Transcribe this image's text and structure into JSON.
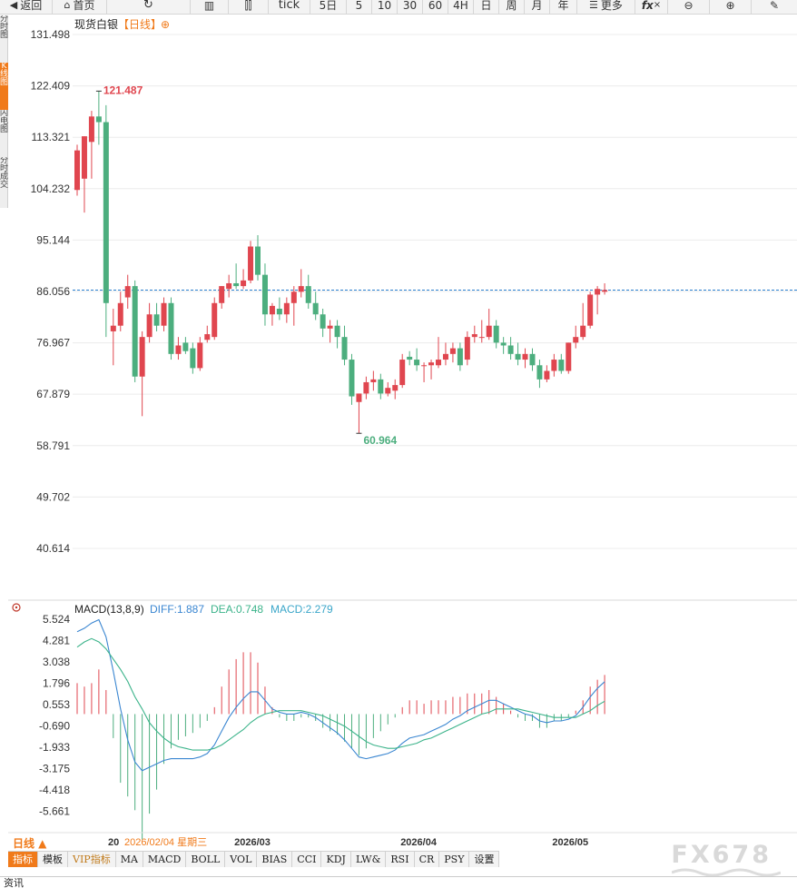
{
  "toolbar": {
    "back": "返回",
    "home": "首页",
    "tick": "tick",
    "periods": [
      "5日",
      "5",
      "10",
      "30",
      "60",
      "4H",
      "日",
      "周",
      "月",
      "年"
    ],
    "more": "更多",
    "fx": "fx"
  },
  "side_tabs": [
    "分时图",
    "K线图",
    "闪电图",
    "分时成交"
  ],
  "chart_header": {
    "title": "现货白银",
    "period_tag": "【日线】",
    "plus": "⊕"
  },
  "price_axis_labels": [
    "131.498",
    "122.409",
    "113.321",
    "104.232",
    "95.144",
    "86.056",
    "76.967",
    "67.879",
    "58.791",
    "49.702",
    "40.614"
  ],
  "price_axis_values": [
    131.498,
    122.409,
    113.321,
    104.232,
    95.144,
    86.056,
    76.967,
    67.879,
    58.791,
    49.702,
    40.614
  ],
  "max_price": {
    "label": "121.487",
    "value": 121.487,
    "index": 3
  },
  "min_price": {
    "label": "60.964",
    "value": 60.964,
    "index": 39
  },
  "current_price": 86.3,
  "macd_header": {
    "name": "MACD(13,8,9)",
    "diff": "DIFF:1.887",
    "dea": "DEA:0.748",
    "macd": "MACD:2.279"
  },
  "macd_axis_labels": [
    "5.524",
    "4.281",
    "3.038",
    "1.796",
    "0.553",
    "-0.690",
    "-1.933",
    "-3.175",
    "-4.418",
    "-5.661"
  ],
  "macd_axis_values": [
    5.524,
    4.281,
    3.038,
    1.796,
    0.553,
    -0.69,
    -1.933,
    -3.175,
    -4.418,
    -5.661
  ],
  "date_labels": [
    {
      "text": "20",
      "index": 4
    },
    {
      "text": "2026/02/04 星期三",
      "index": 6
    },
    {
      "text": "2026/03",
      "index": 22
    },
    {
      "text": "2026/04",
      "index": 45
    },
    {
      "text": "2026/05",
      "index": 66
    }
  ],
  "period_button": "日线 ▲",
  "bottom_tabs": [
    "指标",
    "模板",
    "VIP指标",
    "MA",
    "MACD",
    "BOLL",
    "VOL",
    "BIAS",
    "CCI",
    "KDJ",
    "LW&",
    "RSI",
    "CR",
    "PSY",
    "设置"
  ],
  "info_bar": "资讯",
  "watermark": "FX678",
  "colors": {
    "up": "#e0464f",
    "down": "#4cae7e",
    "diff": "#3a86d1",
    "dea": "#3bb38a",
    "accent": "#f07a1a",
    "grid": "#ececec",
    "price_line": "#2a7fcf"
  },
  "chart_data": {
    "type": "candlestick",
    "title": "现货白银【日线】",
    "ylim": [
      40.614,
      131.498
    ],
    "candles": [
      {
        "o": 104.0,
        "h": 112.0,
        "l": 103.0,
        "c": 111.0
      },
      {
        "o": 106.0,
        "h": 113.5,
        "l": 100.0,
        "c": 113.5
      },
      {
        "o": 112.5,
        "h": 118.0,
        "l": 106.0,
        "c": 117.0
      },
      {
        "o": 117.0,
        "h": 121.487,
        "l": 112.0,
        "c": 116.0
      },
      {
        "o": 116.0,
        "h": 119.0,
        "l": 78.0,
        "c": 84.0
      },
      {
        "o": 79.0,
        "h": 83.0,
        "l": 73.0,
        "c": 80.0
      },
      {
        "o": 80.0,
        "h": 86.0,
        "l": 79.0,
        "c": 84.0
      },
      {
        "o": 85.0,
        "h": 89.0,
        "l": 83.0,
        "c": 87.0
      },
      {
        "o": 87.0,
        "h": 88.0,
        "l": 70.0,
        "c": 71.0
      },
      {
        "o": 71.0,
        "h": 79.0,
        "l": 64.0,
        "c": 78.0
      },
      {
        "o": 78.0,
        "h": 84.0,
        "l": 77.0,
        "c": 82.0
      },
      {
        "o": 82.0,
        "h": 84.0,
        "l": 79.0,
        "c": 80.0
      },
      {
        "o": 80.0,
        "h": 85.0,
        "l": 79.0,
        "c": 84.0
      },
      {
        "o": 84.0,
        "h": 85.0,
        "l": 74.0,
        "c": 75.0
      },
      {
        "o": 75.0,
        "h": 78.0,
        "l": 74.0,
        "c": 76.5
      },
      {
        "o": 77.0,
        "h": 78.0,
        "l": 75.0,
        "c": 75.5
      },
      {
        "o": 76.0,
        "h": 77.0,
        "l": 71.5,
        "c": 72.5
      },
      {
        "o": 72.5,
        "h": 78.0,
        "l": 72.0,
        "c": 77.0
      },
      {
        "o": 77.5,
        "h": 80.0,
        "l": 77.0,
        "c": 78.5
      },
      {
        "o": 78.0,
        "h": 85.0,
        "l": 77.5,
        "c": 84.0
      },
      {
        "o": 84.0,
        "h": 87.0,
        "l": 83.0,
        "c": 87.0
      },
      {
        "o": 86.5,
        "h": 89.0,
        "l": 85.0,
        "c": 87.5
      },
      {
        "o": 87.5,
        "h": 91.0,
        "l": 86.5,
        "c": 87.0
      },
      {
        "o": 87.0,
        "h": 90.0,
        "l": 86.5,
        "c": 88.0
      },
      {
        "o": 88.0,
        "h": 95.0,
        "l": 87.5,
        "c": 94.0
      },
      {
        "o": 94.0,
        "h": 96.0,
        "l": 88.0,
        "c": 89.0
      },
      {
        "o": 89.0,
        "h": 91.0,
        "l": 80.0,
        "c": 82.0
      },
      {
        "o": 82.0,
        "h": 84.0,
        "l": 80.0,
        "c": 83.5
      },
      {
        "o": 83.0,
        "h": 85.0,
        "l": 81.0,
        "c": 82.0
      },
      {
        "o": 82.0,
        "h": 85.0,
        "l": 80.5,
        "c": 84.0
      },
      {
        "o": 84.0,
        "h": 87.0,
        "l": 80.0,
        "c": 86.0
      },
      {
        "o": 86.0,
        "h": 90.0,
        "l": 85.0,
        "c": 87.0
      },
      {
        "o": 87.0,
        "h": 89.0,
        "l": 83.0,
        "c": 84.0
      },
      {
        "o": 84.0,
        "h": 86.0,
        "l": 81.0,
        "c": 82.0
      },
      {
        "o": 82.0,
        "h": 83.0,
        "l": 78.0,
        "c": 79.5
      },
      {
        "o": 79.5,
        "h": 81.0,
        "l": 77.0,
        "c": 80.0
      },
      {
        "o": 80.0,
        "h": 81.0,
        "l": 76.0,
        "c": 78.0
      },
      {
        "o": 78.0,
        "h": 80.0,
        "l": 73.0,
        "c": 74.0
      },
      {
        "o": 74.0,
        "h": 75.0,
        "l": 66.0,
        "c": 67.5
      },
      {
        "o": 66.5,
        "h": 68.0,
        "l": 60.964,
        "c": 68.0
      },
      {
        "o": 68.0,
        "h": 71.0,
        "l": 67.0,
        "c": 70.0
      },
      {
        "o": 70.0,
        "h": 72.0,
        "l": 68.5,
        "c": 70.5
      },
      {
        "o": 70.5,
        "h": 71.5,
        "l": 67.0,
        "c": 68.0
      },
      {
        "o": 68.0,
        "h": 70.0,
        "l": 67.5,
        "c": 69.0
      },
      {
        "o": 68.5,
        "h": 70.5,
        "l": 67.0,
        "c": 69.5
      },
      {
        "o": 69.5,
        "h": 75.0,
        "l": 69.0,
        "c": 74.0
      },
      {
        "o": 74.5,
        "h": 75.5,
        "l": 73.0,
        "c": 74.0
      },
      {
        "o": 74.0,
        "h": 76.0,
        "l": 72.0,
        "c": 73.0
      },
      {
        "o": 73.0,
        "h": 73.5,
        "l": 70.0,
        "c": 73.0
      },
      {
        "o": 73.0,
        "h": 74.0,
        "l": 70.5,
        "c": 73.5
      },
      {
        "o": 73.0,
        "h": 78.0,
        "l": 72.5,
        "c": 74.0
      },
      {
        "o": 74.0,
        "h": 77.0,
        "l": 73.0,
        "c": 75.0
      },
      {
        "o": 75.0,
        "h": 77.0,
        "l": 73.5,
        "c": 76.0
      },
      {
        "o": 76.0,
        "h": 77.0,
        "l": 72.0,
        "c": 73.0
      },
      {
        "o": 74.0,
        "h": 79.0,
        "l": 73.0,
        "c": 78.0
      },
      {
        "o": 78.0,
        "h": 80.0,
        "l": 77.0,
        "c": 78.5
      },
      {
        "o": 78.0,
        "h": 81.0,
        "l": 77.0,
        "c": 78.0
      },
      {
        "o": 78.0,
        "h": 83.0,
        "l": 77.5,
        "c": 80.0
      },
      {
        "o": 80.0,
        "h": 81.0,
        "l": 76.0,
        "c": 77.0
      },
      {
        "o": 77.0,
        "h": 78.0,
        "l": 75.0,
        "c": 76.5
      },
      {
        "o": 76.5,
        "h": 78.0,
        "l": 74.0,
        "c": 75.0
      },
      {
        "o": 75.0,
        "h": 77.0,
        "l": 73.0,
        "c": 74.0
      },
      {
        "o": 74.0,
        "h": 76.0,
        "l": 72.5,
        "c": 75.0
      },
      {
        "o": 75.0,
        "h": 76.0,
        "l": 72.0,
        "c": 73.0
      },
      {
        "o": 73.0,
        "h": 74.0,
        "l": 69.0,
        "c": 70.5
      },
      {
        "o": 70.5,
        "h": 73.0,
        "l": 70.0,
        "c": 72.0
      },
      {
        "o": 72.0,
        "h": 75.0,
        "l": 71.0,
        "c": 74.0
      },
      {
        "o": 74.0,
        "h": 75.0,
        "l": 71.5,
        "c": 72.0
      },
      {
        "o": 72.0,
        "h": 77.0,
        "l": 71.5,
        "c": 77.0
      },
      {
        "o": 77.0,
        "h": 80.0,
        "l": 76.0,
        "c": 78.0
      },
      {
        "o": 78.0,
        "h": 84.0,
        "l": 77.5,
        "c": 80.0
      },
      {
        "o": 80.0,
        "h": 86.0,
        "l": 79.5,
        "c": 85.5
      },
      {
        "o": 85.5,
        "h": 87.0,
        "l": 82.0,
        "c": 86.5
      },
      {
        "o": 86.0,
        "h": 87.5,
        "l": 85.5,
        "c": 86.3
      }
    ],
    "macd": {
      "diff": [
        4.8,
        5.0,
        5.3,
        5.5,
        4.5,
        2.5,
        0.3,
        -1.5,
        -2.8,
        -3.3,
        -3.1,
        -2.9,
        -2.7,
        -2.6,
        -2.6,
        -2.6,
        -2.6,
        -2.5,
        -2.3,
        -1.8,
        -1.0,
        -0.2,
        0.4,
        0.9,
        1.3,
        1.3,
        0.8,
        0.3,
        0.1,
        0.0,
        0.0,
        0.1,
        0.0,
        -0.2,
        -0.5,
        -0.8,
        -1.1,
        -1.5,
        -2.0,
        -2.5,
        -2.6,
        -2.5,
        -2.4,
        -2.3,
        -2.1,
        -1.7,
        -1.4,
        -1.3,
        -1.2,
        -1.0,
        -0.8,
        -0.6,
        -0.3,
        -0.1,
        0.2,
        0.4,
        0.6,
        0.8,
        0.8,
        0.6,
        0.4,
        0.2,
        0.0,
        -0.1,
        -0.4,
        -0.5,
        -0.4,
        -0.4,
        -0.3,
        -0.1,
        0.4,
        1.0,
        1.5,
        1.887
      ],
      "dea": [
        3.9,
        4.2,
        4.4,
        4.2,
        3.8,
        3.2,
        2.6,
        1.9,
        1.0,
        0.3,
        -0.5,
        -1.0,
        -1.4,
        -1.7,
        -1.9,
        -2.0,
        -2.1,
        -2.1,
        -2.1,
        -2.0,
        -1.8,
        -1.5,
        -1.2,
        -0.9,
        -0.5,
        -0.2,
        0.0,
        0.1,
        0.2,
        0.2,
        0.2,
        0.2,
        0.1,
        0.0,
        -0.1,
        -0.3,
        -0.5,
        -0.7,
        -1.0,
        -1.3,
        -1.6,
        -1.8,
        -1.9,
        -2.0,
        -2.0,
        -1.9,
        -1.8,
        -1.7,
        -1.5,
        -1.4,
        -1.2,
        -1.0,
        -0.8,
        -0.6,
        -0.4,
        -0.2,
        0.0,
        0.1,
        0.3,
        0.3,
        0.3,
        0.3,
        0.2,
        0.1,
        0.0,
        -0.1,
        -0.2,
        -0.2,
        -0.2,
        -0.2,
        0.0,
        0.2,
        0.5,
        0.748
      ],
      "hist": [
        1.8,
        1.6,
        1.8,
        2.6,
        1.4,
        -1.4,
        -4.0,
        -4.8,
        -5.6,
        -7.3,
        -5.8,
        -4.4,
        -2.9,
        -2.0,
        -1.5,
        -1.3,
        -1.1,
        -0.8,
        -0.4,
        0.4,
        1.6,
        2.6,
        3.2,
        3.6,
        3.6,
        3.0,
        1.6,
        0.4,
        -0.2,
        -0.4,
        -0.4,
        -0.2,
        -0.2,
        -0.4,
        -0.8,
        -1.0,
        -1.2,
        -1.6,
        -2.0,
        -2.4,
        -2.0,
        -1.4,
        -1.0,
        -0.6,
        -0.2,
        0.4,
        0.8,
        0.8,
        0.6,
        0.8,
        0.8,
        0.8,
        1.0,
        1.0,
        1.2,
        1.2,
        1.2,
        1.4,
        1.0,
        0.6,
        0.2,
        -0.2,
        -0.4,
        -0.4,
        -0.8,
        -0.8,
        -0.4,
        -0.4,
        -0.2,
        0.2,
        0.8,
        1.6,
        2.0,
        2.279
      ]
    }
  }
}
